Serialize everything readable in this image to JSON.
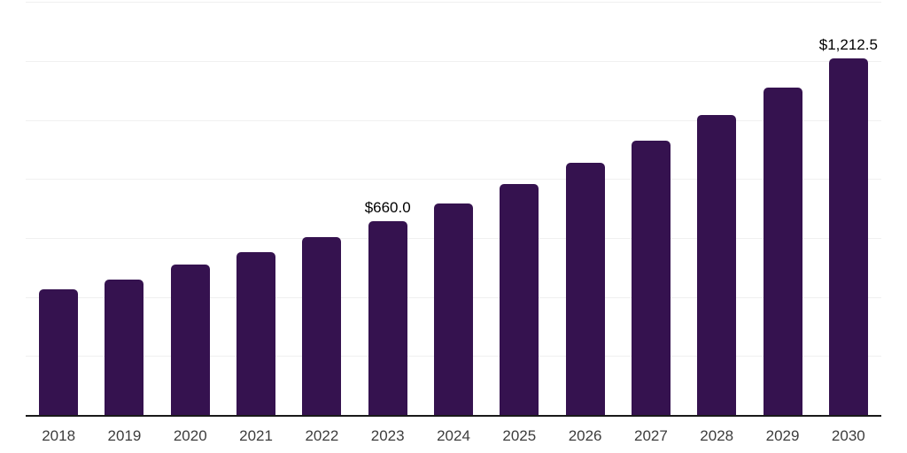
{
  "chart_style": {
    "background": "#ffffff",
    "bar_color": "#35124f",
    "grid_color": "#f0f0f0",
    "axis_color": "#1a1a1a",
    "tick_label_color": "#3d3d3d",
    "data_label_color": "#000000"
  },
  "chart_data": {
    "type": "bar",
    "title": "",
    "xlabel": "",
    "ylabel": "",
    "categories": [
      "2018",
      "2019",
      "2020",
      "2021",
      "2022",
      "2023",
      "2024",
      "2025",
      "2026",
      "2027",
      "2028",
      "2029",
      "2030"
    ],
    "values": [
      430,
      462,
      513,
      556,
      605,
      660.0,
      720,
      785,
      857,
      934,
      1019,
      1112,
      1212.5
    ],
    "data_labels": [
      null,
      null,
      null,
      null,
      null,
      "$660.0",
      null,
      null,
      null,
      null,
      null,
      null,
      "$1,212.5"
    ],
    "ylim": [
      0,
      1400
    ],
    "grid_step": 200,
    "grid": "horizontal-only",
    "y_axis_tick_labels": "none",
    "legend": "none"
  }
}
